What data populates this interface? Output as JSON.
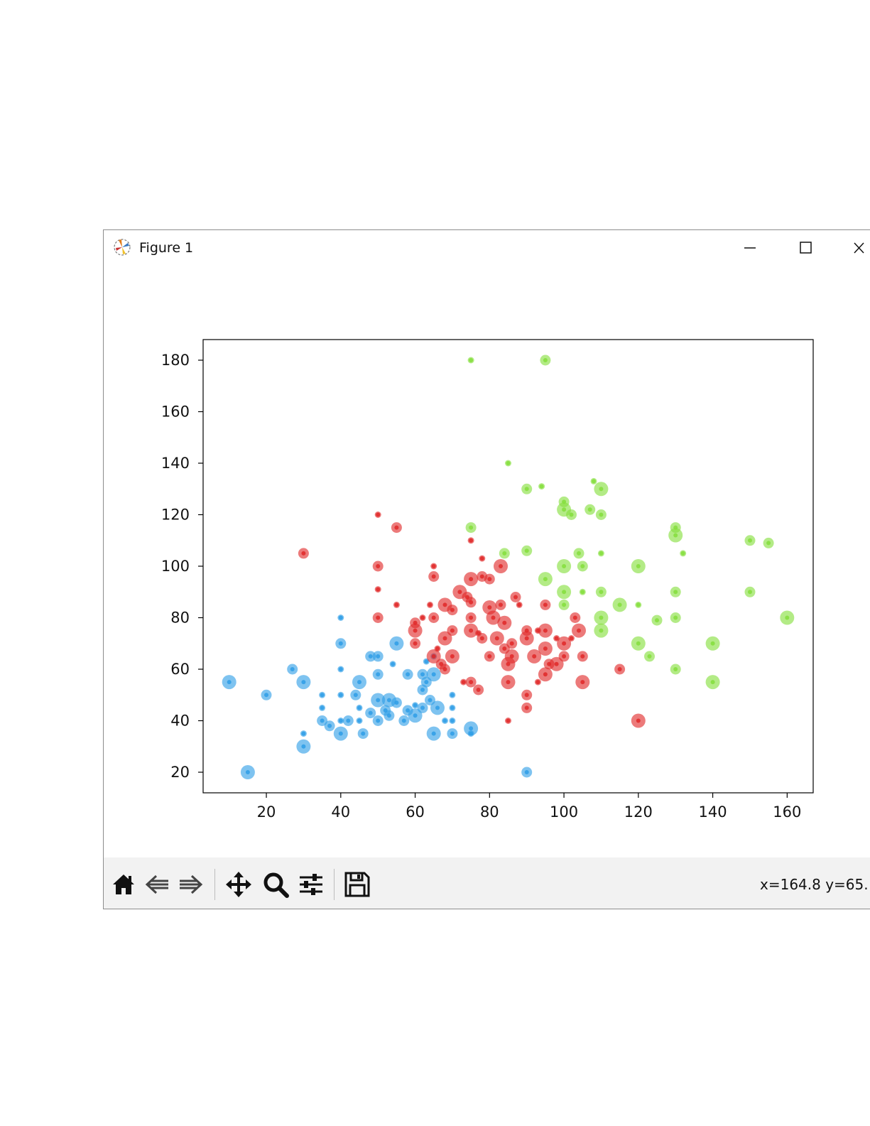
{
  "window": {
    "title": "Figure 1",
    "icon": "matplotlib-logo-icon",
    "controls": [
      "minimize-icon",
      "maximize-icon",
      "close-icon"
    ]
  },
  "toolbar": {
    "tools": [
      "home-icon",
      "back-arrow-icon",
      "forward-arrow-icon",
      "pan-move-icon",
      "zoom-magnifier-icon",
      "configure-subplots-icon",
      "save-floppy-icon"
    ],
    "coordinates": "x=164.8 y=65."
  },
  "chart_data": {
    "type": "scatter",
    "title": "",
    "xlabel": "",
    "ylabel": "",
    "xlim": [
      3,
      167
    ],
    "ylim": [
      12,
      188
    ],
    "xticks": [
      "20",
      "40",
      "60",
      "80",
      "100",
      "120",
      "140",
      "160"
    ],
    "yticks": [
      "20",
      "40",
      "60",
      "80",
      "100",
      "120",
      "140",
      "160",
      "180"
    ],
    "grid": false,
    "legend": "none",
    "series": [
      {
        "color": "#2e9ee6",
        "points": [
          [
            10,
            55,
            3
          ],
          [
            15,
            20,
            3
          ],
          [
            20,
            50,
            2
          ],
          [
            27,
            60,
            2
          ],
          [
            30,
            55,
            3
          ],
          [
            30,
            35,
            1
          ],
          [
            30,
            30,
            3
          ],
          [
            35,
            50,
            1
          ],
          [
            35,
            45,
            1
          ],
          [
            35,
            40,
            2
          ],
          [
            37,
            38,
            2
          ],
          [
            40,
            80,
            1
          ],
          [
            40,
            70,
            2
          ],
          [
            40,
            60,
            1
          ],
          [
            40,
            50,
            1
          ],
          [
            40,
            40,
            1
          ],
          [
            40,
            35,
            3
          ],
          [
            42,
            40,
            2
          ],
          [
            44,
            50,
            2
          ],
          [
            45,
            55,
            3
          ],
          [
            45,
            45,
            1
          ],
          [
            45,
            40,
            1
          ],
          [
            46,
            35,
            2
          ],
          [
            48,
            65,
            2
          ],
          [
            48,
            43,
            2
          ],
          [
            50,
            65,
            2
          ],
          [
            50,
            58,
            2
          ],
          [
            50,
            48,
            3
          ],
          [
            50,
            40,
            2
          ],
          [
            52,
            44,
            2
          ],
          [
            53,
            48,
            3
          ],
          [
            53,
            42,
            2
          ],
          [
            54,
            62,
            1
          ],
          [
            55,
            47,
            2
          ],
          [
            55,
            70,
            3
          ],
          [
            57,
            40,
            2
          ],
          [
            58,
            58,
            2
          ],
          [
            58,
            44,
            2
          ],
          [
            60,
            46,
            1
          ],
          [
            60,
            42,
            3
          ],
          [
            62,
            45,
            2
          ],
          [
            62,
            58,
            2
          ],
          [
            62,
            52,
            2
          ],
          [
            63,
            63,
            1
          ],
          [
            63,
            55,
            2
          ],
          [
            64,
            48,
            2
          ],
          [
            65,
            65,
            1
          ],
          [
            65,
            58,
            3
          ],
          [
            65,
            35,
            3
          ],
          [
            66,
            45,
            3
          ],
          [
            68,
            40,
            1
          ],
          [
            70,
            50,
            1
          ],
          [
            70,
            45,
            1
          ],
          [
            70,
            40,
            1
          ],
          [
            70,
            35,
            2
          ],
          [
            75,
            37,
            3
          ],
          [
            75,
            35,
            1
          ],
          [
            90,
            20,
            2
          ]
        ]
      },
      {
        "color": "#e02828",
        "points": [
          [
            30,
            105,
            2
          ],
          [
            50,
            120,
            1
          ],
          [
            50,
            100,
            2
          ],
          [
            50,
            91,
            1
          ],
          [
            50,
            80,
            2
          ],
          [
            55,
            115,
            2
          ],
          [
            55,
            85,
            1
          ],
          [
            60,
            78,
            2
          ],
          [
            60,
            75,
            3
          ],
          [
            60,
            70,
            2
          ],
          [
            62,
            80,
            1
          ],
          [
            64,
            85,
            1
          ],
          [
            65,
            100,
            1
          ],
          [
            65,
            96,
            2
          ],
          [
            65,
            80,
            2
          ],
          [
            65,
            65,
            3
          ],
          [
            66,
            68,
            1
          ],
          [
            67,
            62,
            2
          ],
          [
            68,
            85,
            3
          ],
          [
            68,
            72,
            3
          ],
          [
            68,
            60,
            2
          ],
          [
            70,
            83,
            2
          ],
          [
            70,
            75,
            2
          ],
          [
            70,
            65,
            3
          ],
          [
            72,
            90,
            3
          ],
          [
            73,
            55,
            1
          ],
          [
            74,
            88,
            2
          ],
          [
            75,
            110,
            1
          ],
          [
            75,
            95,
            3
          ],
          [
            75,
            86,
            2
          ],
          [
            75,
            80,
            2
          ],
          [
            75,
            75,
            3
          ],
          [
            75,
            55,
            2
          ],
          [
            77,
            74,
            1
          ],
          [
            77,
            52,
            2
          ],
          [
            78,
            103,
            1
          ],
          [
            78,
            96,
            2
          ],
          [
            78,
            72,
            2
          ],
          [
            80,
            95,
            2
          ],
          [
            80,
            84,
            3
          ],
          [
            80,
            65,
            2
          ],
          [
            81,
            80,
            3
          ],
          [
            82,
            72,
            3
          ],
          [
            83,
            100,
            3
          ],
          [
            83,
            85,
            2
          ],
          [
            84,
            78,
            3
          ],
          [
            84,
            68,
            2
          ],
          [
            85,
            62,
            3
          ],
          [
            85,
            55,
            3
          ],
          [
            85,
            40,
            1
          ],
          [
            86,
            70,
            2
          ],
          [
            86,
            65,
            3
          ],
          [
            87,
            88,
            2
          ],
          [
            88,
            85,
            1
          ],
          [
            90,
            75,
            2
          ],
          [
            90,
            72,
            3
          ],
          [
            90,
            50,
            2
          ],
          [
            90,
            45,
            2
          ],
          [
            92,
            65,
            3
          ],
          [
            93,
            75,
            1
          ],
          [
            93,
            55,
            1
          ],
          [
            95,
            85,
            2
          ],
          [
            95,
            75,
            3
          ],
          [
            95,
            68,
            3
          ],
          [
            95,
            58,
            3
          ],
          [
            96,
            62,
            2
          ],
          [
            98,
            72,
            1
          ],
          [
            98,
            62,
            3
          ],
          [
            100,
            70,
            3
          ],
          [
            100,
            65,
            2
          ],
          [
            102,
            72,
            1
          ],
          [
            103,
            80,
            2
          ],
          [
            104,
            75,
            3
          ],
          [
            105,
            65,
            2
          ],
          [
            105,
            55,
            3
          ],
          [
            115,
            60,
            2
          ],
          [
            120,
            40,
            3
          ]
        ]
      },
      {
        "color": "#84de3c",
        "points": [
          [
            75,
            180,
            1
          ],
          [
            75,
            115,
            2
          ],
          [
            84,
            105,
            2
          ],
          [
            85,
            140,
            1
          ],
          [
            90,
            130,
            2
          ],
          [
            90,
            106,
            2
          ],
          [
            94,
            131,
            1
          ],
          [
            95,
            180,
            2
          ],
          [
            95,
            95,
            3
          ],
          [
            100,
            125,
            2
          ],
          [
            100,
            122,
            3
          ],
          [
            100,
            100,
            3
          ],
          [
            100,
            90,
            3
          ],
          [
            100,
            85,
            2
          ],
          [
            102,
            120,
            2
          ],
          [
            104,
            105,
            2
          ],
          [
            105,
            100,
            2
          ],
          [
            105,
            90,
            1
          ],
          [
            107,
            122,
            2
          ],
          [
            108,
            133,
            1
          ],
          [
            110,
            130,
            3
          ],
          [
            110,
            120,
            2
          ],
          [
            110,
            105,
            1
          ],
          [
            110,
            90,
            2
          ],
          [
            110,
            80,
            3
          ],
          [
            110,
            75,
            3
          ],
          [
            115,
            85,
            3
          ],
          [
            120,
            100,
            3
          ],
          [
            120,
            85,
            1
          ],
          [
            120,
            70,
            3
          ],
          [
            123,
            65,
            2
          ],
          [
            125,
            79,
            2
          ],
          [
            130,
            115,
            2
          ],
          [
            130,
            112,
            3
          ],
          [
            130,
            90,
            2
          ],
          [
            130,
            80,
            2
          ],
          [
            130,
            60,
            2
          ],
          [
            132,
            105,
            1
          ],
          [
            140,
            70,
            3
          ],
          [
            140,
            55,
            3
          ],
          [
            150,
            110,
            2
          ],
          [
            150,
            90,
            2
          ],
          [
            155,
            109,
            2
          ],
          [
            160,
            80,
            3
          ]
        ]
      }
    ]
  }
}
